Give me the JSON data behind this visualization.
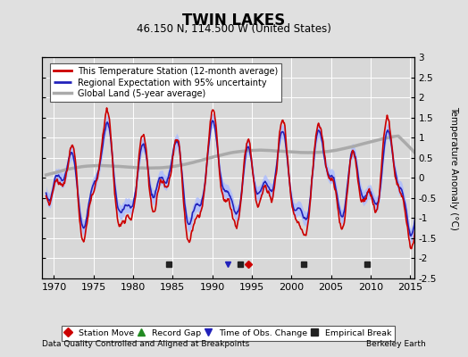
{
  "title": "TWIN LAKES",
  "subtitle": "46.150 N, 114.500 W (United States)",
  "xlabel_note": "Data Quality Controlled and Aligned at Breakpoints",
  "xlabel_credit": "Berkeley Earth",
  "ylabel": "Temperature Anomaly (°C)",
  "xlim": [
    1968.5,
    2015.5
  ],
  "ylim": [
    -2.5,
    3.0
  ],
  "yticks": [
    -2.5,
    -2,
    -1.5,
    -1,
    -0.5,
    0,
    0.5,
    1,
    1.5,
    2,
    2.5,
    3
  ],
  "xticks": [
    1970,
    1975,
    1980,
    1985,
    1990,
    1995,
    2000,
    2005,
    2010,
    2015
  ],
  "bg_color": "#e0e0e0",
  "plot_bg_color": "#d8d8d8",
  "grid_color": "#ffffff",
  "station_color": "#cc0000",
  "regional_color": "#2222bb",
  "uncertainty_color": "#aabbff",
  "global_color": "#aaaaaa",
  "legend_labels": [
    "This Temperature Station (12-month average)",
    "Regional Expectation with 95% uncertainty",
    "Global Land (5-year average)"
  ],
  "marker_labels": [
    "Station Move",
    "Record Gap",
    "Time of Obs. Change",
    "Empirical Break"
  ],
  "marker_colors": [
    "#cc0000",
    "#228B22",
    "#2222bb",
    "#222222"
  ],
  "marker_shapes": [
    "D",
    "^",
    "v",
    "s"
  ],
  "station_moves": [
    1994.5
  ],
  "record_gaps": [],
  "obs_changes": [
    1992.0
  ],
  "empirical_breaks": [
    1984.5,
    1993.5,
    2001.5,
    2009.5
  ]
}
